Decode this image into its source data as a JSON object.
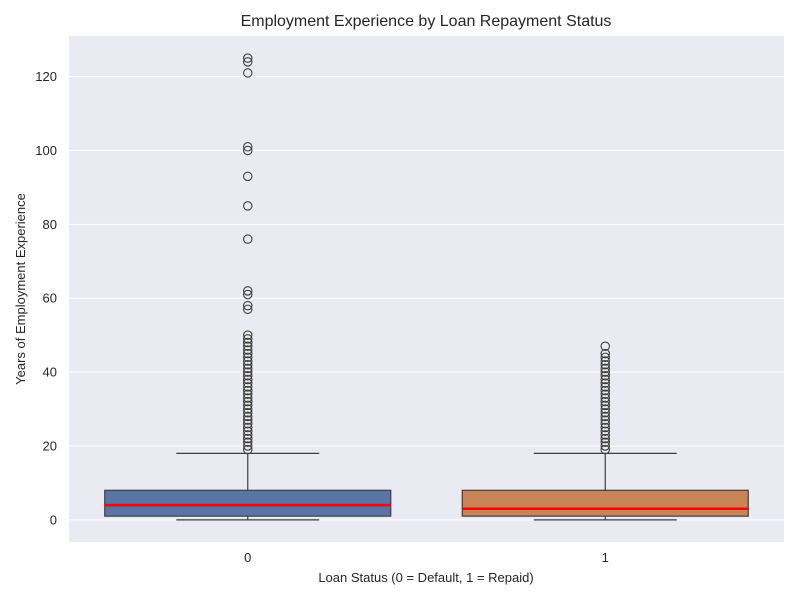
{
  "chart_data": {
    "type": "box",
    "title": "Employment Experience by Loan Repayment Status",
    "xlabel": "Loan Status (0 = Default, 1 = Repaid)",
    "ylabel": "Years of Employment Experience",
    "categories": [
      "0",
      "1"
    ],
    "ylim": [
      -6,
      131
    ],
    "yticks": [
      0,
      20,
      40,
      60,
      80,
      100,
      120
    ],
    "ytick_labels": [
      "0",
      "20",
      "40",
      "60",
      "80",
      "100",
      "120"
    ],
    "grid": true,
    "series": [
      {
        "category": "0",
        "color": "#5b74a6",
        "median_color": "#ff0000",
        "min": 0,
        "q1": 1,
        "median": 4,
        "q3": 8,
        "max": 18,
        "outliers": [
          19,
          20,
          21,
          22,
          23,
          24,
          25,
          26,
          27,
          28,
          29,
          30,
          31,
          32,
          33,
          34,
          35,
          36,
          37,
          38,
          39,
          40,
          41,
          42,
          43,
          44,
          45,
          46,
          47,
          48,
          49,
          50,
          57,
          58,
          61,
          62,
          76,
          85,
          93,
          100,
          101,
          121,
          124,
          125
        ]
      },
      {
        "category": "1",
        "color": "#c98457",
        "median_color": "#ff0000",
        "min": 0,
        "q1": 1,
        "median": 3,
        "q3": 8,
        "max": 18,
        "outliers": [
          19,
          20,
          21,
          22,
          23,
          24,
          25,
          26,
          27,
          28,
          29,
          30,
          31,
          32,
          33,
          34,
          35,
          36,
          37,
          38,
          39,
          40,
          41,
          42,
          43,
          44,
          45,
          47
        ]
      }
    ]
  }
}
